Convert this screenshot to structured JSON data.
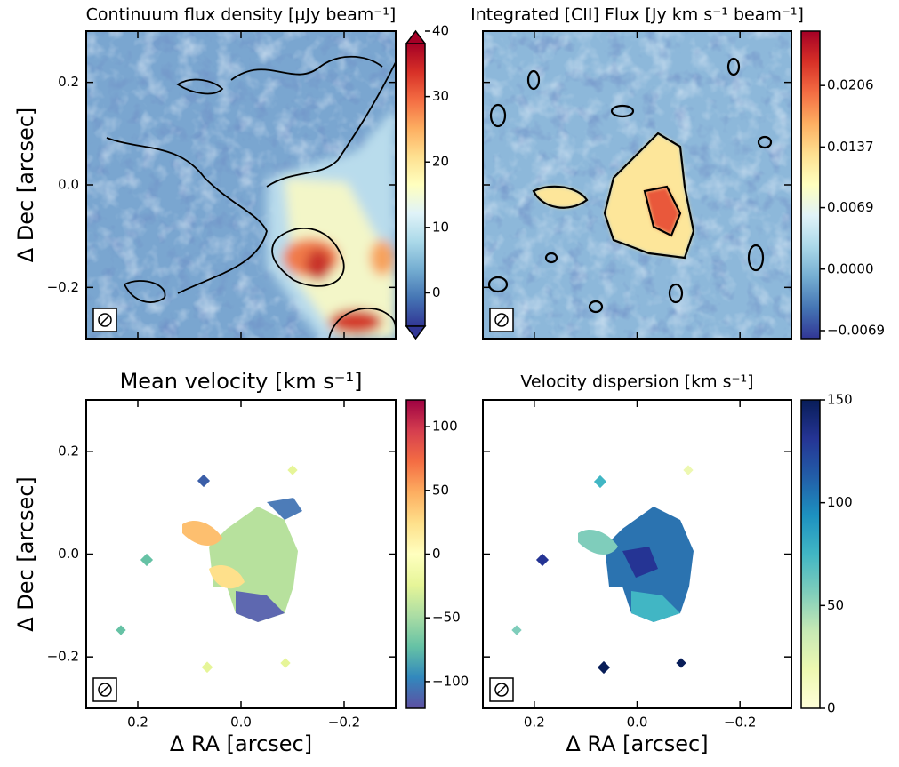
{
  "chart_data": [
    {
      "type": "image",
      "title": "Continuum flux density [μJy beam⁻¹]",
      "ylabel": "Δ Dec [arcsec]",
      "xlim": [
        0.3,
        -0.3
      ],
      "ylim": [
        -0.3,
        0.3
      ],
      "xticks": [
        0.2,
        0,
        -0.2
      ],
      "yticks": [
        0.2,
        {
          "value": 0,
          "label": "0.0"
        },
        {
          "value": -0.2,
          "label": "−0.2"
        }
      ],
      "show_xtick_labels": false,
      "show_ytick_labels": true,
      "colorbar": {
        "lim": [
          -7,
          40
        ],
        "ticks": [
          40,
          30,
          20,
          10,
          0
        ],
        "colormap": "RdYlBu_r",
        "extend": true
      }
    },
    {
      "type": "image",
      "title": "Integrated [CII] Flux [Jy km s⁻¹ beam⁻¹]",
      "xlim": [
        0.3,
        -0.3
      ],
      "ylim": [
        -0.3,
        0.3
      ],
      "xticks": [
        0.2,
        0,
        -0.2
      ],
      "yticks": [
        0.2,
        0,
        -0.2
      ],
      "show_xtick_labels": false,
      "show_ytick_labels": false,
      "colorbar": {
        "lim": [
          -0.0078,
          0.0267
        ],
        "ticks": [
          0.0206,
          0.0137,
          0.0069,
          {
            "value": 0,
            "label": "0.0000"
          },
          {
            "value": -0.0069,
            "label": "−0.0069"
          }
        ],
        "colormap": "RdYlBu_r",
        "extend": false
      }
    },
    {
      "type": "image",
      "title": "Mean velocity [km s⁻¹]",
      "xlabel": "Δ RA [arcsec]",
      "ylabel": "Δ Dec [arcsec]",
      "xlim": [
        0.3,
        -0.3
      ],
      "ylim": [
        -0.3,
        0.3
      ],
      "xticks": [
        0.2,
        {
          "value": 0,
          "label": "0.0"
        },
        {
          "value": -0.2,
          "label": "−0.2"
        }
      ],
      "yticks": [
        0.2,
        {
          "value": 0,
          "label": "0.0"
        },
        {
          "value": -0.2,
          "label": "−0.2"
        }
      ],
      "show_xtick_labels": true,
      "show_ytick_labels": true,
      "colorbar": {
        "lim": [
          -121,
          121
        ],
        "ticks": [
          100,
          50,
          0,
          {
            "value": -50,
            "label": "−50"
          },
          {
            "value": -100,
            "label": "−100"
          }
        ],
        "colormap": "Spectral_r",
        "extend": false
      }
    },
    {
      "type": "image",
      "title": "Velocity dispersion [km s⁻¹]",
      "xlabel": "Δ RA [arcsec]",
      "xlim": [
        0.3,
        -0.3
      ],
      "ylim": [
        -0.3,
        0.3
      ],
      "xticks": [
        0.2,
        {
          "value": 0,
          "label": "0.0"
        },
        {
          "value": -0.2,
          "label": "−0.2"
        }
      ],
      "yticks": [
        0.2,
        0,
        -0.2
      ],
      "show_xtick_labels": true,
      "show_ytick_labels": false,
      "colorbar": {
        "lim": [
          0,
          150
        ],
        "ticks": [
          150,
          100,
          50,
          0
        ],
        "colormap": "YlGnBu",
        "extend": false
      }
    }
  ]
}
